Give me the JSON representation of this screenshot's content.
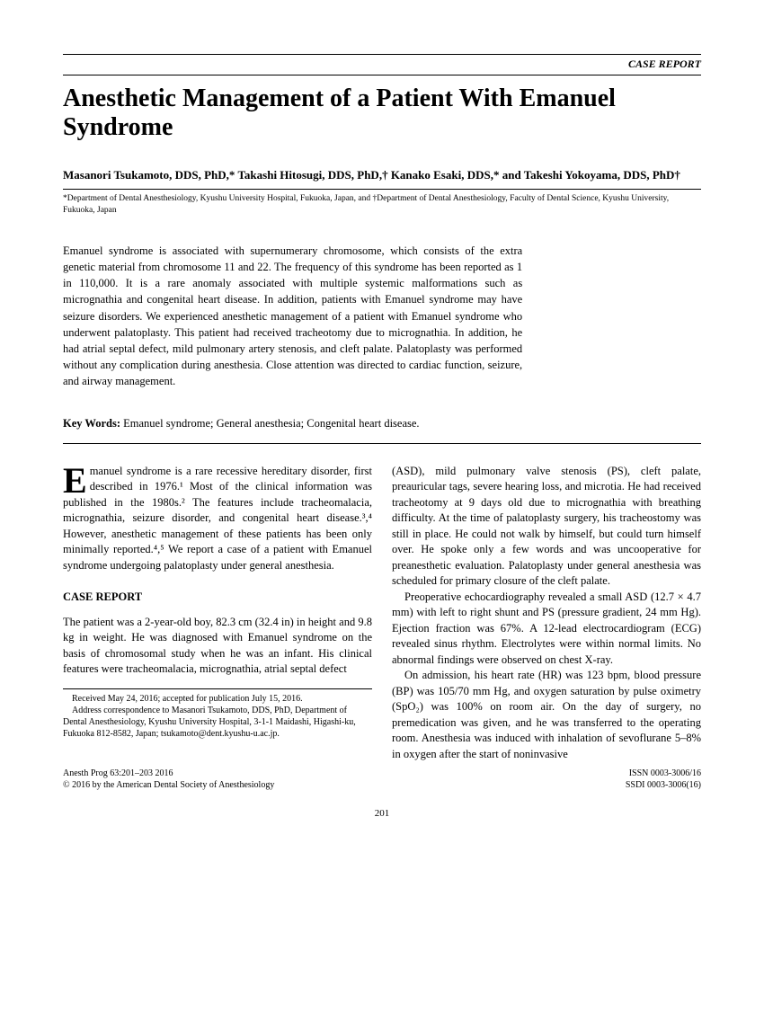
{
  "header": {
    "label": "CASE REPORT"
  },
  "title": "Anesthetic Management of a Patient With Emanuel Syndrome",
  "authors": "Masanori Tsukamoto, DDS, PhD,* Takashi Hitosugi, DDS, PhD,† Kanako Esaki, DDS,* and Takeshi Yokoyama, DDS, PhD†",
  "affiliations": "*Department of Dental Anesthesiology, Kyushu University Hospital, Fukuoka, Japan, and †Department of Dental Anesthesiology, Faculty of Dental Science, Kyushu University, Fukuoka, Japan",
  "abstract": "Emanuel syndrome is associated with supernumerary chromosome, which consists of the extra genetic material from chromosome 11 and 22. The frequency of this syndrome has been reported as 1 in 110,000. It is a rare anomaly associated with multiple systemic malformations such as micrognathia and congenital heart disease. In addition, patients with Emanuel syndrome may have seizure disorders. We experienced anesthetic management of a patient with Emanuel syndrome who underwent palatoplasty. This patient had received tracheotomy due to micrognathia. In addition, he had atrial septal defect, mild pulmonary artery stenosis, and cleft palate. Palatoplasty was performed without any complication during anesthesia. Close attention was directed to cardiac function, seizure, and airway management.",
  "keywords": {
    "label": "Key Words:",
    "text": "Emanuel syndrome; General anesthesia; Congenital heart disease."
  },
  "body": {
    "intro_first": "E",
    "intro_rest": "manuel syndrome is a rare recessive hereditary disorder, first described in 1976.¹ Most of the clinical information was published in the 1980s.² The features include tracheomalacia, micrognathia, seizure disorder, and congenital heart disease.³,⁴ However, anesthetic management of these patients has been only minimally reported.⁴,⁵ We report a case of a patient with Emanuel syndrome undergoing palatoplasty under general anesthesia.",
    "section_heading": "CASE REPORT",
    "col1_p2": "The patient was a 2-year-old boy, 82.3 cm (32.4 in) in height and 9.8 kg in weight. He was diagnosed with Emanuel syndrome on the basis of chromosomal study when he was an infant. His clinical features were tracheomalacia, micrognathia, atrial septal defect",
    "col2_p1": "(ASD), mild pulmonary valve stenosis (PS), cleft palate, preauricular tags, severe hearing loss, and microtia. He had received tracheotomy at 9 days old due to micrognathia with breathing difficulty. At the time of palatoplasty surgery, his tracheostomy was still in place. He could not walk by himself, but could turn himself over. He spoke only a few words and was uncooperative for preanesthetic evaluation. Palatoplasty under general anesthesia was scheduled for primary closure of the cleft palate.",
    "col2_p2": "Preoperative echocardiography revealed a small ASD (12.7 × 4.7 mm) with left to right shunt and PS (pressure gradient, 24 mm Hg). Ejection fraction was 67%. A 12-lead electrocardiogram (ECG) revealed sinus rhythm. Electrolytes were within normal limits. No abnormal findings were observed on chest X-ray.",
    "col2_p3": "On admission, his heart rate (HR) was 123 bpm, blood pressure (BP) was 105/70 mm Hg, and oxygen saturation by pulse oximetry (SpO₂) was 100% on room air. On the day of surgery, no premedication was given, and he was transferred to the operating room. Anesthesia was induced with inhalation of sevoflurane 5–8% in oxygen after the start of noninvasive"
  },
  "received": {
    "line1": "Received May 24, 2016; accepted for publication July 15, 2016.",
    "line2": "Address correspondence to Masanori Tsukamoto, DDS, PhD, Department of Dental Anesthesiology, Kyushu University Hospital, 3-1-1 Maidashi, Higashi-ku, Fukuoka 812-8582, Japan; tsukamoto@dent.kyushu-u.ac.jp."
  },
  "footer": {
    "left1": "Anesth Prog 63:201–203 2016",
    "left2": "© 2016 by the American Dental Society of Anesthesiology",
    "right1": "ISSN 0003-3006/16",
    "right2": "SSDI 0003-3006(16)"
  },
  "page_number": "201"
}
